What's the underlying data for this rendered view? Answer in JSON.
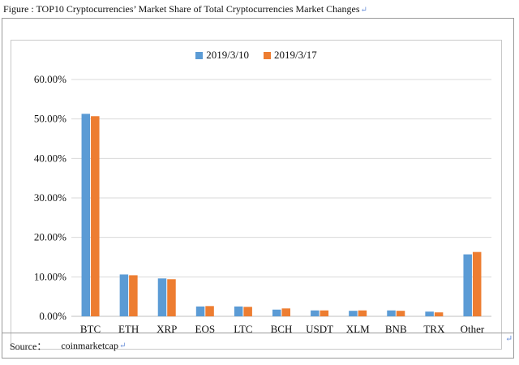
{
  "figure": {
    "caption": "Figure : TOP10 Cryptocurrencies’ Market Share of Total Cryptocurrencies Market Changes",
    "source_label": "Source：",
    "source_value": "coinmarketcap",
    "para_mark": "↵"
  },
  "colors": {
    "series1": "#5b9bd5",
    "series2": "#ed7d31",
    "gridline": "#d9d9d9",
    "axis": "#bfbfbf"
  },
  "chart_data": {
    "type": "bar",
    "categories": [
      "BTC",
      "ETH",
      "XRP",
      "EOS",
      "LTC",
      "BCH",
      "USDT",
      "XLM",
      "BNB",
      "TRX",
      "Other"
    ],
    "series": [
      {
        "name": "2019/3/10",
        "values": [
          51.3,
          10.6,
          9.6,
          2.5,
          2.5,
          1.7,
          1.5,
          1.4,
          1.5,
          1.2,
          15.7
        ]
      },
      {
        "name": "2019/3/17",
        "values": [
          50.7,
          10.4,
          9.4,
          2.6,
          2.4,
          2.0,
          1.5,
          1.5,
          1.4,
          1.0,
          16.3
        ]
      }
    ],
    "yticks": [
      "0.00%",
      "10.00%",
      "20.00%",
      "30.00%",
      "40.00%",
      "50.00%",
      "60.00%"
    ],
    "ylim": [
      0,
      60
    ],
    "grid": true,
    "legend_position": "top-center"
  }
}
